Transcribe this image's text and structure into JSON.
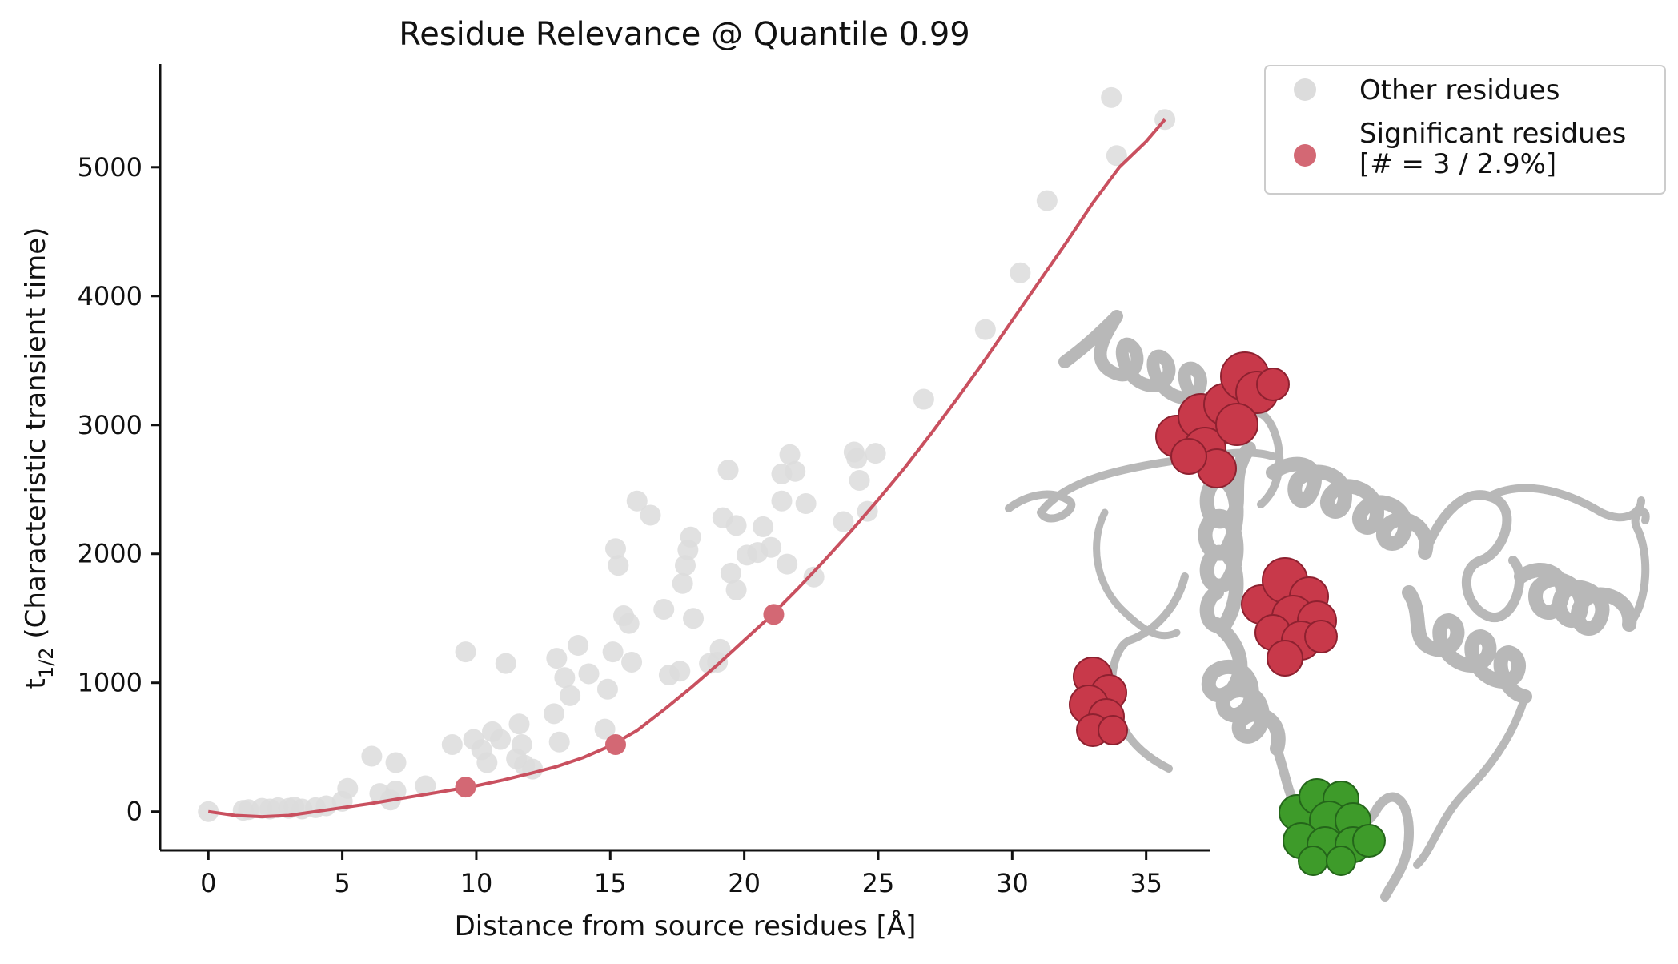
{
  "chart_data": {
    "type": "scatter",
    "title": "Residue Relevance @ Quantile 0.99",
    "xlabel": "Distance from source residues [Å]",
    "ylabel": {
      "main": "t",
      "subscript": "1/2",
      "rest": " (Characteristic transient time)"
    },
    "xlim": [
      -1.8,
      37.4
    ],
    "ylim": [
      -300,
      5800
    ],
    "xticks": [
      0,
      5,
      10,
      15,
      20,
      25,
      30,
      35
    ],
    "yticks": [
      0,
      1000,
      2000,
      3000,
      4000,
      5000
    ],
    "grid": false,
    "legend_position": "outside-top-right",
    "series": [
      {
        "name": "Other residues",
        "color": "#dcdcdc",
        "points": [
          [
            0.0,
            0
          ],
          [
            1.3,
            10
          ],
          [
            1.5,
            15
          ],
          [
            2.0,
            25
          ],
          [
            2.3,
            20
          ],
          [
            2.6,
            30
          ],
          [
            3.0,
            25
          ],
          [
            3.2,
            35
          ],
          [
            3.5,
            20
          ],
          [
            4.0,
            30
          ],
          [
            4.4,
            45
          ],
          [
            5.0,
            80
          ],
          [
            5.2,
            180
          ],
          [
            6.1,
            430
          ],
          [
            6.4,
            140
          ],
          [
            6.8,
            90
          ],
          [
            7.0,
            380
          ],
          [
            7.0,
            160
          ],
          [
            8.1,
            200
          ],
          [
            9.1,
            520
          ],
          [
            9.6,
            1240
          ],
          [
            9.9,
            560
          ],
          [
            10.2,
            480
          ],
          [
            10.4,
            380
          ],
          [
            10.6,
            620
          ],
          [
            10.9,
            560
          ],
          [
            11.1,
            1150
          ],
          [
            11.5,
            410
          ],
          [
            11.6,
            680
          ],
          [
            11.7,
            520
          ],
          [
            11.8,
            360
          ],
          [
            12.1,
            330
          ],
          [
            12.9,
            760
          ],
          [
            13.0,
            1190
          ],
          [
            13.1,
            540
          ],
          [
            13.3,
            1040
          ],
          [
            13.5,
            900
          ],
          [
            13.8,
            1290
          ],
          [
            14.2,
            1070
          ],
          [
            14.8,
            640
          ],
          [
            14.9,
            950
          ],
          [
            15.1,
            1240
          ],
          [
            15.3,
            1910
          ],
          [
            15.5,
            1520
          ],
          [
            15.7,
            1460
          ],
          [
            15.8,
            1160
          ],
          [
            15.2,
            2040
          ],
          [
            16.0,
            2410
          ],
          [
            16.5,
            2300
          ],
          [
            17.0,
            1570
          ],
          [
            17.2,
            1060
          ],
          [
            17.6,
            1090
          ],
          [
            17.7,
            1770
          ],
          [
            17.8,
            1910
          ],
          [
            17.9,
            2030
          ],
          [
            18.0,
            2130
          ],
          [
            18.1,
            1500
          ],
          [
            18.7,
            1150
          ],
          [
            19.0,
            1160
          ],
          [
            19.1,
            1260
          ],
          [
            19.2,
            2280
          ],
          [
            19.4,
            2650
          ],
          [
            19.5,
            1850
          ],
          [
            19.7,
            1720
          ],
          [
            19.7,
            2220
          ],
          [
            20.1,
            1990
          ],
          [
            20.5,
            2010
          ],
          [
            20.7,
            2210
          ],
          [
            21.0,
            2050
          ],
          [
            21.4,
            2410
          ],
          [
            21.4,
            2620
          ],
          [
            21.6,
            1920
          ],
          [
            21.7,
            2770
          ],
          [
            21.9,
            2640
          ],
          [
            22.3,
            2390
          ],
          [
            22.6,
            1820
          ],
          [
            23.7,
            2250
          ],
          [
            24.1,
            2790
          ],
          [
            24.2,
            2740
          ],
          [
            24.3,
            2570
          ],
          [
            24.6,
            2330
          ],
          [
            24.9,
            2780
          ],
          [
            26.7,
            3200
          ],
          [
            29.0,
            3740
          ],
          [
            30.3,
            4180
          ],
          [
            31.3,
            4740
          ],
          [
            33.7,
            5540
          ],
          [
            33.9,
            5090
          ],
          [
            35.7,
            5370
          ]
        ]
      },
      {
        "name": "Significant residues\n[# = 3 / 2.9%]",
        "color": "#d36874",
        "points": [
          [
            9.6,
            190
          ],
          [
            15.2,
            520
          ],
          [
            21.1,
            1530
          ]
        ]
      }
    ],
    "fit_curve": {
      "color": "#c9505f",
      "points": [
        [
          0,
          0
        ],
        [
          1,
          -30
        ],
        [
          2,
          -40
        ],
        [
          3,
          -30
        ],
        [
          4,
          0
        ],
        [
          5,
          30
        ],
        [
          6,
          60
        ],
        [
          7,
          95
        ],
        [
          8,
          130
        ],
        [
          9,
          165
        ],
        [
          10,
          200
        ],
        [
          11,
          245
        ],
        [
          12,
          295
        ],
        [
          13,
          350
        ],
        [
          14,
          420
        ],
        [
          15,
          510
        ],
        [
          16,
          630
        ],
        [
          17,
          790
        ],
        [
          18,
          960
        ],
        [
          19,
          1140
        ],
        [
          20,
          1330
        ],
        [
          21,
          1520
        ],
        [
          22,
          1730
        ],
        [
          23,
          1950
        ],
        [
          24,
          2180
        ],
        [
          25,
          2420
        ],
        [
          26,
          2670
        ],
        [
          27,
          2940
        ],
        [
          28,
          3220
        ],
        [
          29,
          3510
        ],
        [
          30,
          3810
        ],
        [
          31,
          4110
        ],
        [
          32,
          4410
        ],
        [
          33,
          4720
        ],
        [
          34,
          5000
        ],
        [
          35,
          5200
        ],
        [
          35.7,
          5370
        ]
      ]
    }
  },
  "inset": {
    "description_icon": "protein-ribbon-structure-image",
    "ribbon_color": "#c9c9c9",
    "highlight_colors": {
      "significant": "#c8394a",
      "source": "#3e9b2a"
    }
  }
}
